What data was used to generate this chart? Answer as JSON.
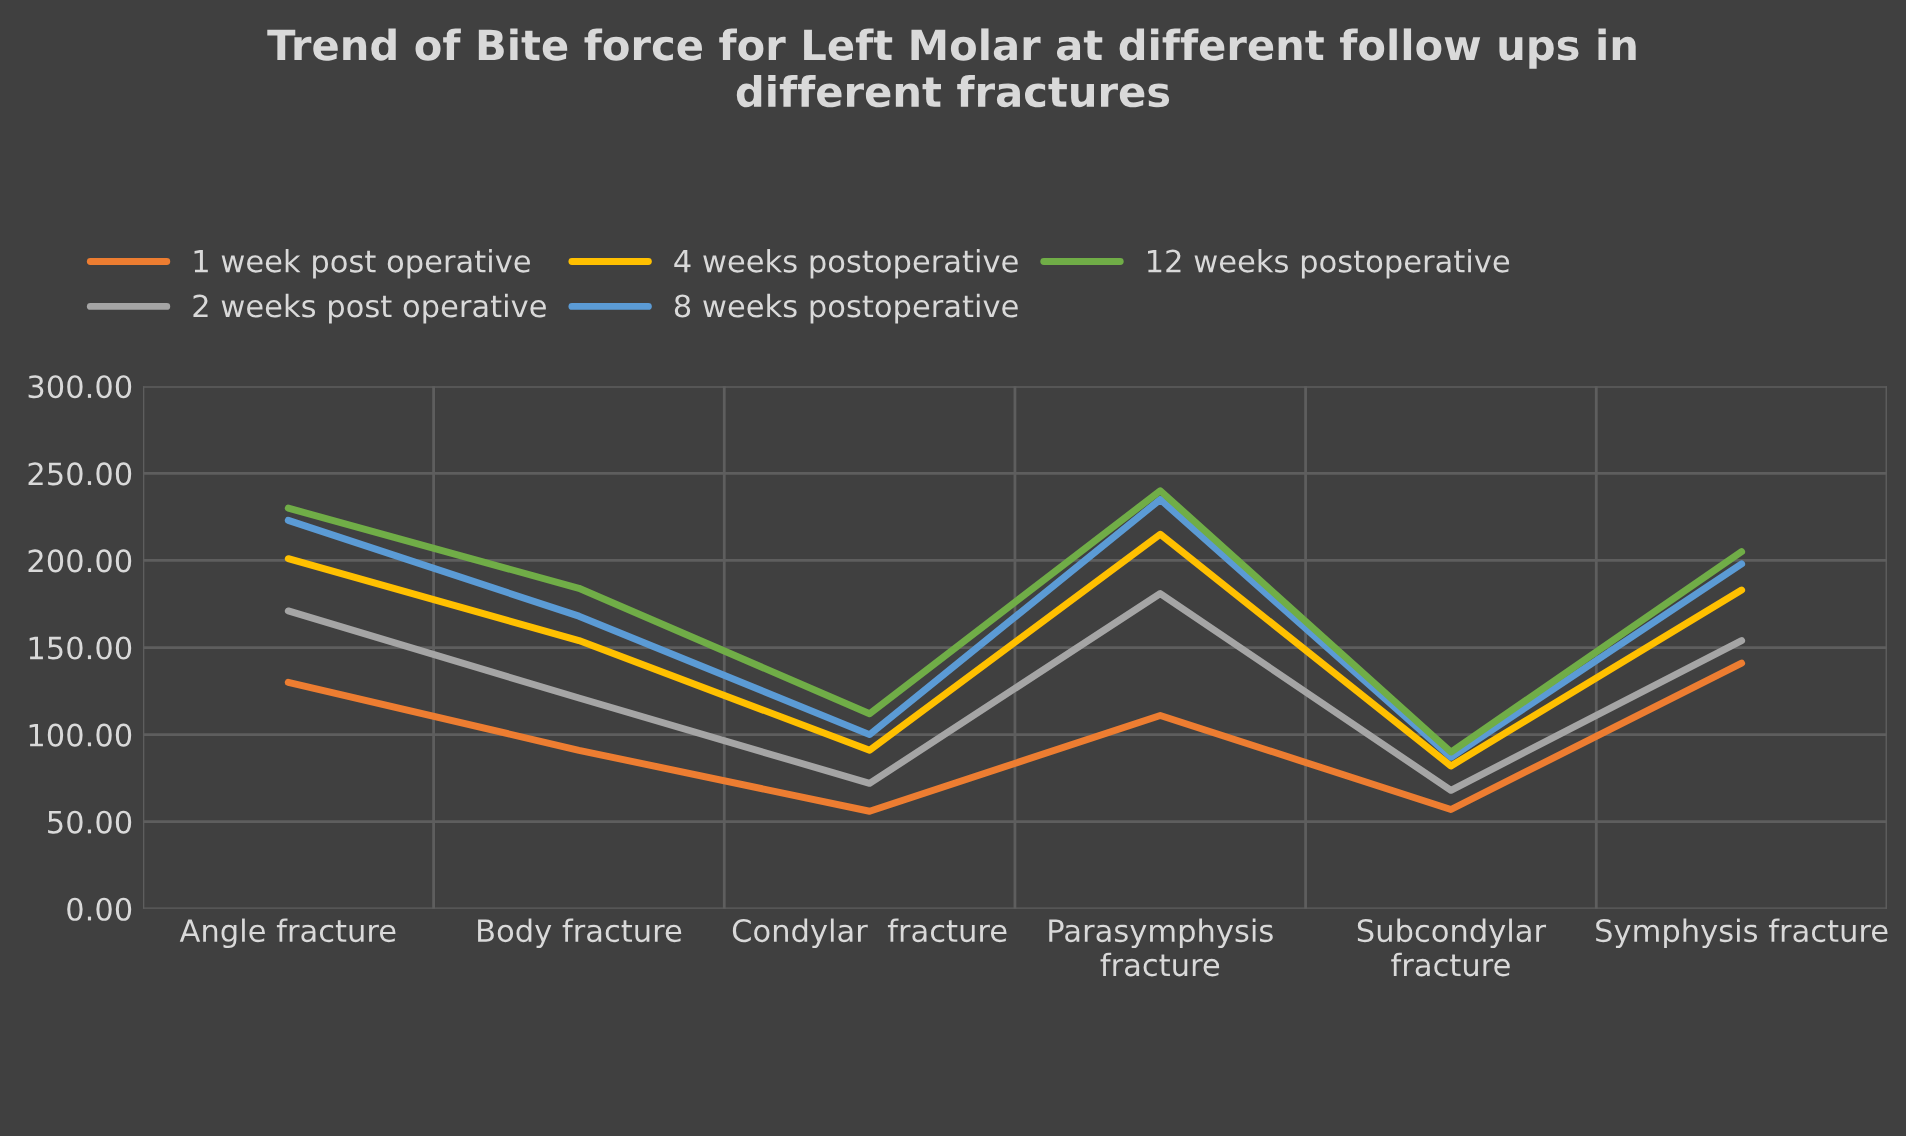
{
  "chart_data": {
    "type": "line",
    "title": "Trend of Bite force for Left Molar at different follow ups in\ndifferent fractures",
    "categories": [
      "Angle fracture",
      "Body fracture",
      "Condylar  fracture",
      "Parasymphysis\nfracture",
      "Subcondylar\nfracture",
      "Symphysis fracture"
    ],
    "series": [
      {
        "name": "1 week post operative",
        "color": "#ed7d31",
        "values": [
          130,
          91,
          56,
          111,
          57,
          141
        ]
      },
      {
        "name": "2 weeks post operative",
        "color": "#a5a5a5",
        "values": [
          171,
          121,
          72,
          181,
          68,
          154
        ]
      },
      {
        "name": "4 weeks postoperative",
        "color": "#ffc000",
        "values": [
          201,
          154,
          91,
          215,
          82,
          183
        ]
      },
      {
        "name": "8 weeks postoperative",
        "color": "#5b9bd5",
        "values": [
          223,
          168,
          100,
          235,
          87,
          198
        ]
      },
      {
        "name": "12 weeks postoperative",
        "color": "#70ad47",
        "values": [
          230,
          184,
          112,
          240,
          90,
          205
        ]
      }
    ],
    "ylim": [
      0,
      300
    ],
    "yticks": [
      {
        "value": 0,
        "label": "0.00"
      },
      {
        "value": 50,
        "label": "50.00"
      },
      {
        "value": 100,
        "label": "100.00"
      },
      {
        "value": 150,
        "label": "150.00"
      },
      {
        "value": 200,
        "label": "200.00"
      },
      {
        "value": 250,
        "label": "250.00"
      },
      {
        "value": 300,
        "label": "300.00"
      }
    ],
    "grid": true,
    "legend": "top",
    "marker": "none",
    "line_style": "solid"
  }
}
